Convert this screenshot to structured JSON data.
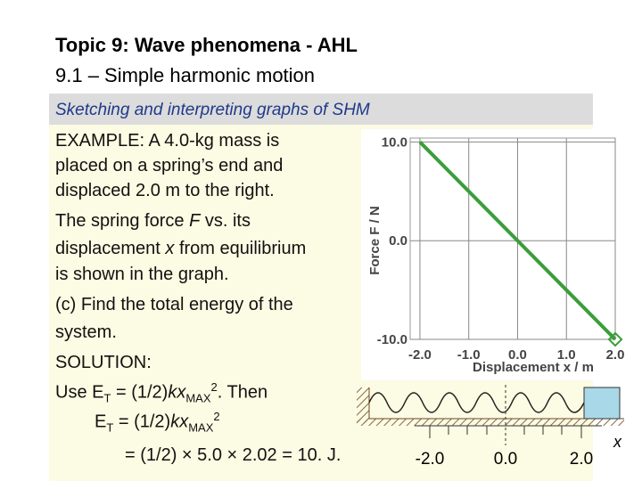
{
  "header": {
    "title": "Topic 9: Wave phenomena - AHL",
    "subtitle": "9.1 – Simple harmonic motion",
    "section": "Sketching and interpreting graphs of SHM"
  },
  "body": {
    "lines": [
      [
        "EXAMPLE:  A 4.0-kg mass is"
      ],
      [
        "placed on a spring’s end and"
      ],
      [
        "displaced 2.0 m to the right."
      ],
      [
        "The spring force ",
        "F",
        " vs. its"
      ],
      [
        "displacement ",
        "x",
        " from equilibrium"
      ],
      [
        "is shown in the graph."
      ],
      [
        "(c) Find the total energy of the"
      ],
      [
        "system."
      ],
      [
        "SOLUTION:"
      ],
      [
        "Use E",
        "T",
        " = (1/2)",
        "kx",
        "MAX",
        "2",
        ". Then"
      ],
      [
        "E",
        "T",
        " = (1/2)",
        "kx",
        "MAX",
        "2"
      ],
      [
        "= (1/2) × 5.0 × 2.02 = 10. J."
      ]
    ]
  },
  "chart_data": {
    "type": "line",
    "x_label": "Displacement x / m",
    "y_label": "Force F / N",
    "x": [
      -2.0,
      2.0
    ],
    "series": [
      {
        "color": "#3a9e3a",
        "values": [
          10.0,
          -10.0
        ]
      }
    ],
    "xlim": [
      -2.2,
      2.0
    ],
    "ylim": [
      -10.0,
      10.4
    ],
    "xticks": [
      {
        "value": -2,
        "label": "-2.0"
      },
      {
        "value": -1,
        "label": "-1.0"
      },
      {
        "value": 0,
        "label": "0.0"
      },
      {
        "value": 1,
        "label": "1.0"
      },
      {
        "value": 2,
        "label": "2.0"
      }
    ],
    "yticks": [
      {
        "value": 10,
        "label": "10.0"
      },
      {
        "value": 0,
        "label": "0.0"
      },
      {
        "value": -10,
        "label": "-10.0"
      }
    ],
    "grid": true
  },
  "spring_diagram": {
    "labels": [
      "-2.0",
      "0.0",
      "2.0"
    ],
    "axis_label": "x"
  }
}
